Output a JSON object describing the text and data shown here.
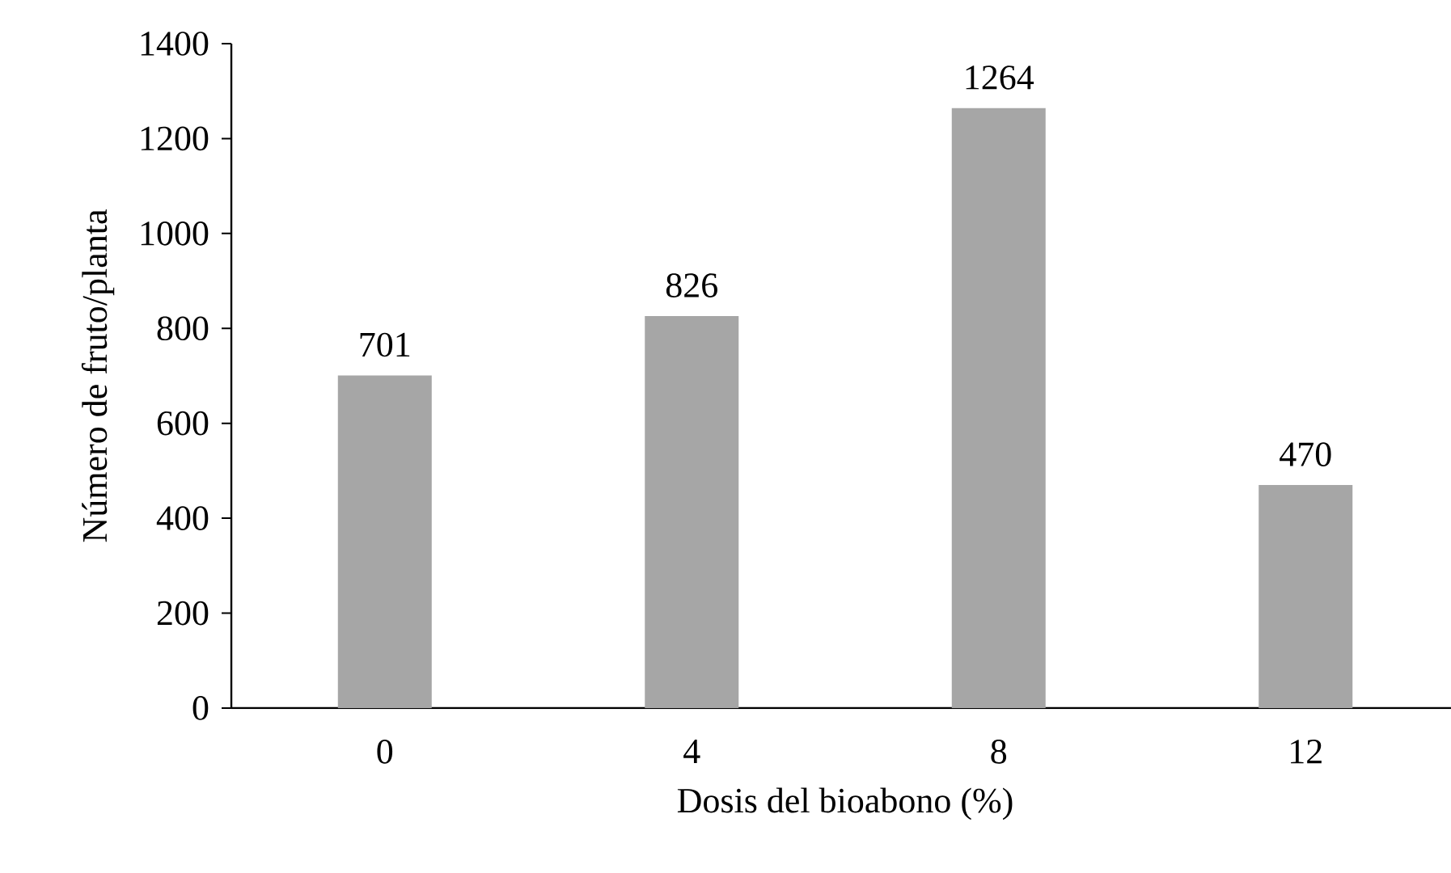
{
  "chart_data": {
    "type": "bar",
    "xlabel": "Dosis del bioabono (%)",
    "ylabel": "Número de fruto/planta",
    "categories": [
      "0",
      "4",
      "8",
      "12"
    ],
    "values": [
      701,
      826,
      1264,
      470
    ],
    "color": "#a6a6a6",
    "ylim": [
      0,
      1400
    ],
    "yticks": [
      0,
      200,
      400,
      600,
      800,
      1000,
      1200,
      1400
    ],
    "data_labels": true,
    "grid": false
  }
}
